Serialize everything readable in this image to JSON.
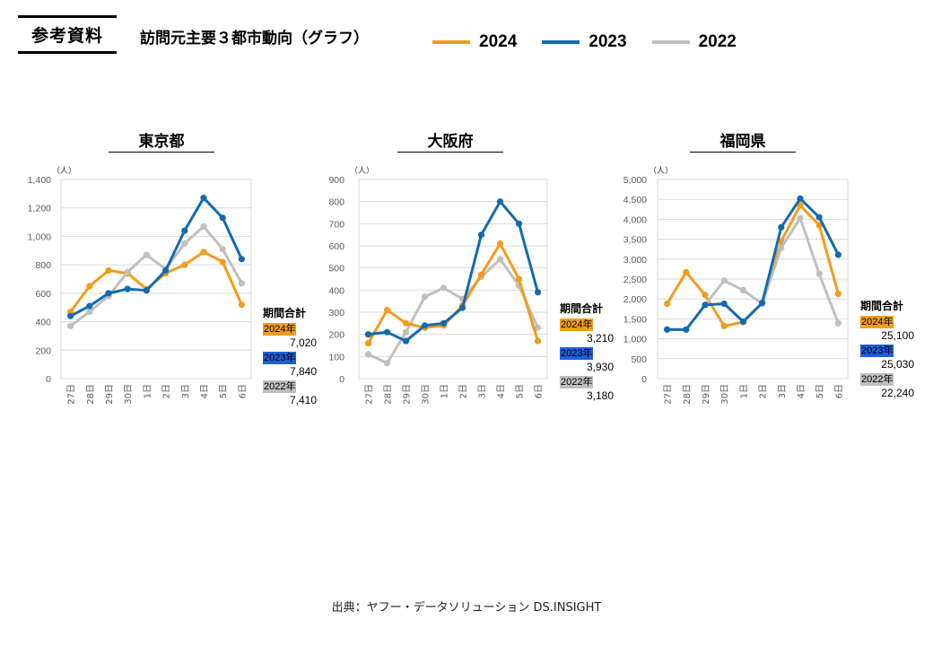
{
  "header": {
    "badge": "参考資料",
    "title": "訪問元主要３都市動向（グラフ）"
  },
  "legend": [
    {
      "label": "2024",
      "color": "#F39C1B"
    },
    {
      "label": "2023",
      "color": "#136BAF"
    },
    {
      "label": "2022",
      "color": "#BFBFBF"
    }
  ],
  "totals_heading": "期間合計",
  "source": "出典：ヤフー・データソリューション DS.INSIGHT",
  "chart_data": [
    {
      "type": "line",
      "title": "東京都",
      "unit": "（人）",
      "categories": [
        "27日",
        "28日",
        "29日",
        "30日",
        "1日",
        "2日",
        "3日",
        "4日",
        "5日",
        "6日"
      ],
      "ylim": [
        0,
        1400
      ],
      "ystep": 200,
      "yticks": [
        "0",
        "200",
        "400",
        "600",
        "800",
        "1,000",
        "1,200",
        "1,400"
      ],
      "grid": true,
      "series": [
        {
          "name": "2024",
          "color": "#F39C1B",
          "values": [
            470,
            650,
            760,
            740,
            630,
            740,
            800,
            890,
            820,
            520
          ]
        },
        {
          "name": "2022",
          "color": "#BFBFBF",
          "values": [
            370,
            470,
            580,
            750,
            870,
            770,
            950,
            1070,
            910,
            670
          ]
        },
        {
          "name": "2023",
          "color": "#136BAF",
          "values": [
            440,
            510,
            600,
            630,
            620,
            760,
            1040,
            1270,
            1130,
            840
          ]
        }
      ],
      "totals": [
        {
          "year": "2024年",
          "value": "7,020",
          "bg": "#F39C1B"
        },
        {
          "year": "2023年",
          "value": "7,840",
          "bg": "#1F5FDB"
        },
        {
          "year": "2022年",
          "value": "7,410",
          "bg": "#BFBFBF"
        }
      ]
    },
    {
      "type": "line",
      "title": "大阪府",
      "unit": "（人）",
      "categories": [
        "27日",
        "28日",
        "29日",
        "30日",
        "1日",
        "2日",
        "3日",
        "4日",
        "5日",
        "6日"
      ],
      "ylim": [
        0,
        900
      ],
      "ystep": 100,
      "yticks": [
        "0",
        "100",
        "200",
        "300",
        "400",
        "500",
        "600",
        "700",
        "800",
        "900"
      ],
      "grid": true,
      "series": [
        {
          "name": "2022",
          "color": "#BFBFBF",
          "values": [
            110,
            70,
            210,
            370,
            410,
            360,
            460,
            540,
            420,
            230
          ]
        },
        {
          "name": "2024",
          "color": "#F39C1B",
          "values": [
            160,
            310,
            250,
            230,
            240,
            330,
            470,
            610,
            450,
            170
          ]
        },
        {
          "name": "2023",
          "color": "#136BAF",
          "values": [
            200,
            210,
            170,
            240,
            250,
            320,
            650,
            800,
            700,
            390
          ]
        }
      ],
      "totals": [
        {
          "year": "2024年",
          "value": "3,210",
          "bg": "#F39C1B"
        },
        {
          "year": "2023年",
          "value": "3,930",
          "bg": "#1F5FDB"
        },
        {
          "year": "2022年",
          "value": "3,180",
          "bg": "#BFBFBF"
        }
      ]
    },
    {
      "type": "line",
      "title": "福岡県",
      "unit": "（人）",
      "categories": [
        "27日",
        "28日",
        "29日",
        "30日",
        "1日",
        "2日",
        "3日",
        "4日",
        "5日",
        "6日"
      ],
      "ylim": [
        0,
        5000
      ],
      "ystep": 500,
      "yticks": [
        "0",
        "500",
        "1,000",
        "1,500",
        "2,000",
        "2,500",
        "3,000",
        "3,500",
        "4,000",
        "4,500",
        "5,000"
      ],
      "grid": true,
      "series": [
        {
          "name": "2024",
          "color": "#F39C1B",
          "values": [
            1880,
            2670,
            2100,
            1320,
            1420,
            1900,
            3450,
            4350,
            3850,
            2130
          ]
        },
        {
          "name": "2022",
          "color": "#BFBFBF",
          "values": [
            1240,
            1230,
            1850,
            2460,
            2220,
            1880,
            3280,
            4030,
            2630,
            1390
          ]
        },
        {
          "name": "2023",
          "color": "#136BAF",
          "values": [
            1230,
            1230,
            1850,
            1880,
            1430,
            1900,
            3800,
            4520,
            4050,
            3110
          ]
        }
      ],
      "totals": [
        {
          "year": "2024年",
          "value": "25,100",
          "bg": "#F39C1B"
        },
        {
          "year": "2023年",
          "value": "25,030",
          "bg": "#1F5FDB"
        },
        {
          "year": "2022年",
          "value": "22,240",
          "bg": "#BFBFBF"
        }
      ]
    }
  ]
}
